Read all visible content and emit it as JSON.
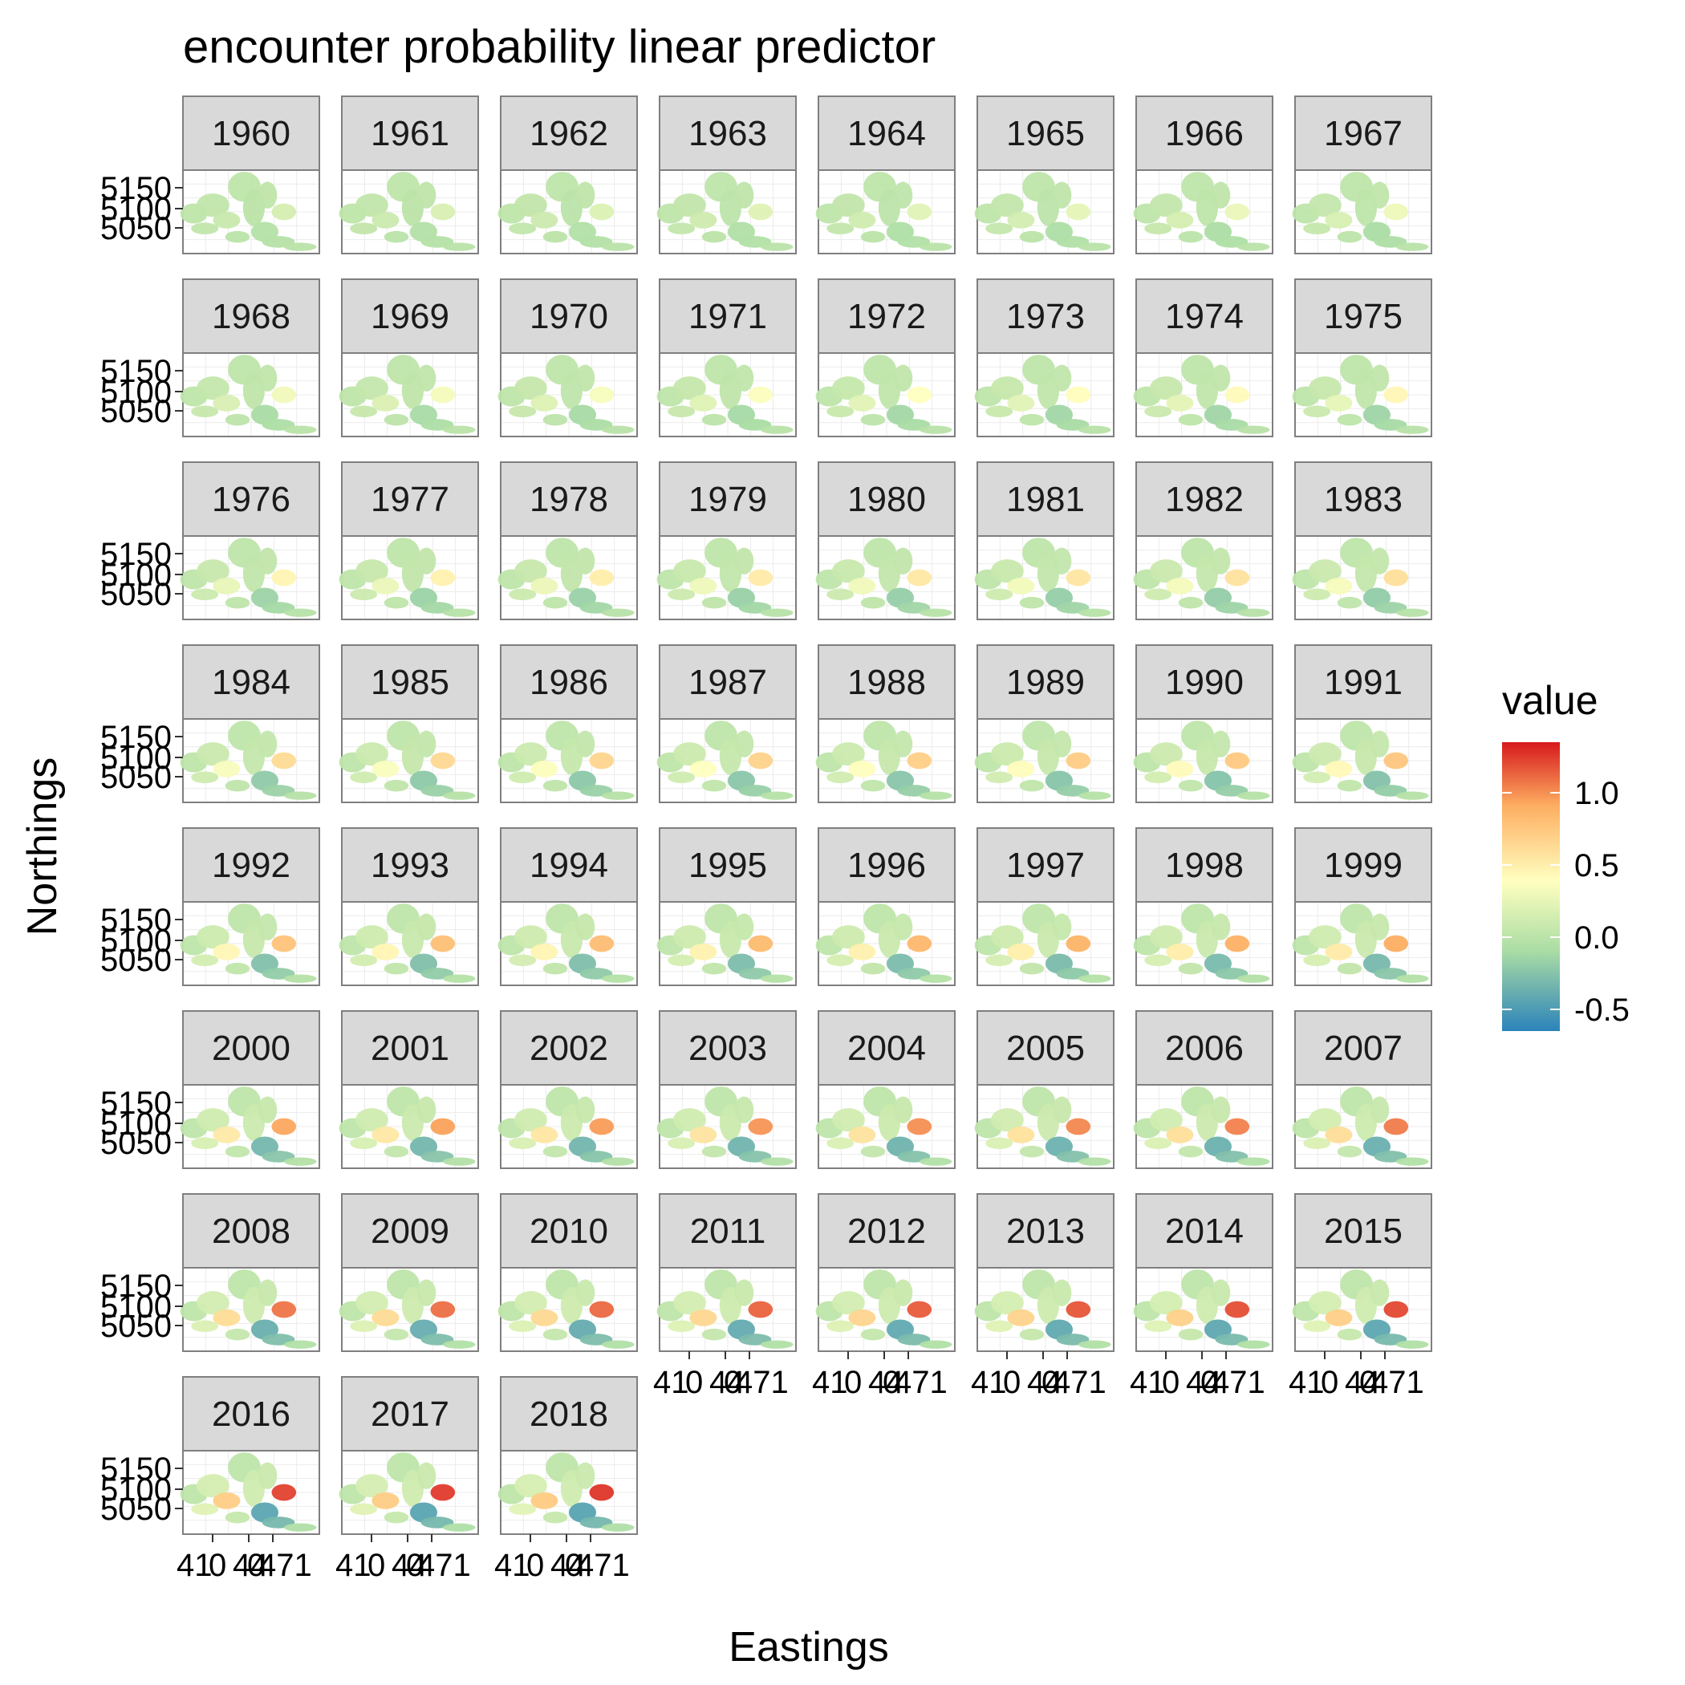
{
  "chart_data": {
    "type": "heatmap",
    "title": "encounter probability linear predictor",
    "xlabel": "Eastings",
    "ylabel": "Northings",
    "y_ticks": [
      "5150",
      "5100",
      "5050"
    ],
    "x_ticks": [
      "410",
      "440",
      "471"
    ],
    "x_ticks_rendered": [
      "41",
      "0",
      "44",
      "0",
      "471"
    ],
    "legend": {
      "title": "value",
      "ticks": [
        "1.0",
        "0.5",
        "0.0",
        "-0.5"
      ],
      "range": [
        -0.65,
        1.35
      ],
      "colors": [
        "#2b83ba",
        "#abdda4",
        "#ffffbf",
        "#fdae61",
        "#d7191c"
      ]
    },
    "panels": [
      {
        "year": "1960",
        "hot": 0.05
      },
      {
        "year": "1961",
        "hot": 0.07
      },
      {
        "year": "1962",
        "hot": 0.09
      },
      {
        "year": "1963",
        "hot": 0.11
      },
      {
        "year": "1964",
        "hot": 0.13
      },
      {
        "year": "1965",
        "hot": 0.15
      },
      {
        "year": "1966",
        "hot": 0.18
      },
      {
        "year": "1967",
        "hot": 0.2
      },
      {
        "year": "1968",
        "hot": 0.22
      },
      {
        "year": "1969",
        "hot": 0.24
      },
      {
        "year": "1970",
        "hot": 0.26
      },
      {
        "year": "1971",
        "hot": 0.28
      },
      {
        "year": "1972",
        "hot": 0.3
      },
      {
        "year": "1973",
        "hot": 0.32
      },
      {
        "year": "1974",
        "hot": 0.34
      },
      {
        "year": "1975",
        "hot": 0.36
      },
      {
        "year": "1976",
        "hot": 0.38
      },
      {
        "year": "1977",
        "hot": 0.4
      },
      {
        "year": "1978",
        "hot": 0.42
      },
      {
        "year": "1979",
        "hot": 0.44
      },
      {
        "year": "1980",
        "hot": 0.46
      },
      {
        "year": "1981",
        "hot": 0.48
      },
      {
        "year": "1982",
        "hot": 0.5
      },
      {
        "year": "1983",
        "hot": 0.52
      },
      {
        "year": "1984",
        "hot": 0.55
      },
      {
        "year": "1985",
        "hot": 0.57
      },
      {
        "year": "1986",
        "hot": 0.59
      },
      {
        "year": "1987",
        "hot": 0.61
      },
      {
        "year": "1988",
        "hot": 0.63
      },
      {
        "year": "1989",
        "hot": 0.65
      },
      {
        "year": "1990",
        "hot": 0.67
      },
      {
        "year": "1991",
        "hot": 0.69
      },
      {
        "year": "1992",
        "hot": 0.71
      },
      {
        "year": "1993",
        "hot": 0.73
      },
      {
        "year": "1994",
        "hot": 0.75
      },
      {
        "year": "1995",
        "hot": 0.77
      },
      {
        "year": "1996",
        "hot": 0.79
      },
      {
        "year": "1997",
        "hot": 0.81
      },
      {
        "year": "1998",
        "hot": 0.83
      },
      {
        "year": "1999",
        "hot": 0.85
      },
      {
        "year": "2000",
        "hot": 0.87
      },
      {
        "year": "2001",
        "hot": 0.89
      },
      {
        "year": "2002",
        "hot": 0.91
      },
      {
        "year": "2003",
        "hot": 0.93
      },
      {
        "year": "2004",
        "hot": 0.95
      },
      {
        "year": "2005",
        "hot": 0.97
      },
      {
        "year": "2006",
        "hot": 0.99
      },
      {
        "year": "2007",
        "hot": 1.01
      },
      {
        "year": "2008",
        "hot": 1.03
      },
      {
        "year": "2009",
        "hot": 1.05
      },
      {
        "year": "2010",
        "hot": 1.07
      },
      {
        "year": "2011",
        "hot": 1.09
      },
      {
        "year": "2012",
        "hot": 1.11
      },
      {
        "year": "2013",
        "hot": 1.13
      },
      {
        "year": "2014",
        "hot": 1.15
      },
      {
        "year": "2015",
        "hot": 1.17
      },
      {
        "year": "2016",
        "hot": 1.19
      },
      {
        "year": "2017",
        "hot": 1.21
      },
      {
        "year": "2018",
        "hot": 1.23
      }
    ]
  }
}
